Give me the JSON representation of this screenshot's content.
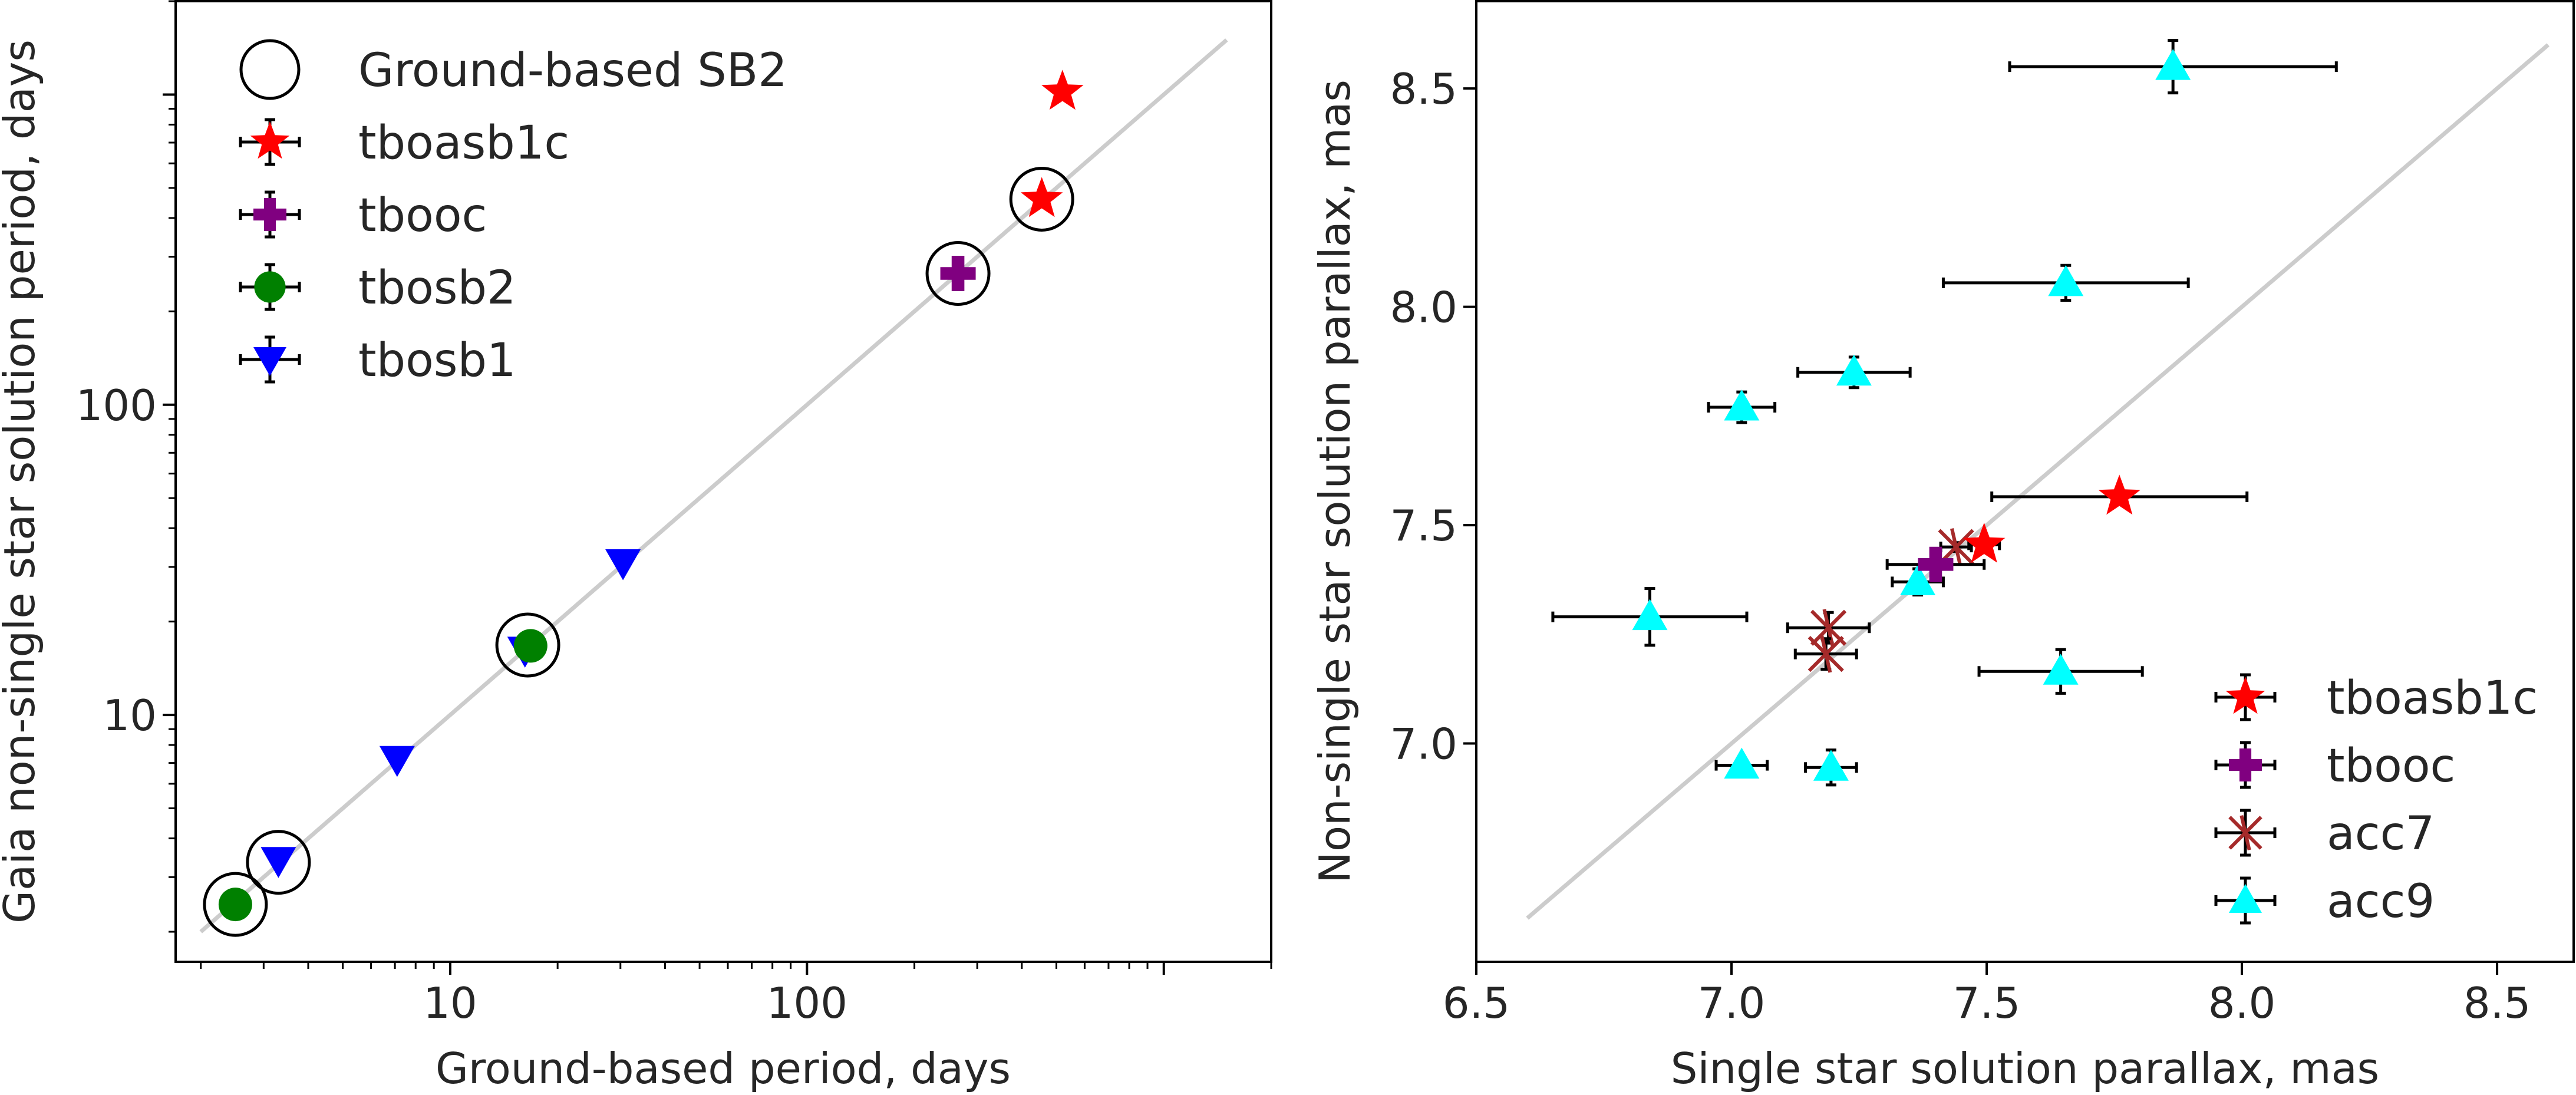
{
  "chart_data": [
    {
      "type": "scatter",
      "xscale": "log",
      "yscale": "log",
      "xlabel": "Ground-based period, days",
      "ylabel": "Gaia non-single star solution period, days",
      "xlim": [
        1.7,
        2000
      ],
      "ylim": [
        1.6,
        2000
      ],
      "xticks": [
        {
          "value": 10,
          "label": "10"
        },
        {
          "value": 100,
          "label": "100"
        }
      ],
      "yticks": [
        {
          "value": 10,
          "label": "10"
        },
        {
          "value": 100,
          "label": "100"
        }
      ],
      "reference_line": {
        "from": [
          2.0,
          2.0
        ],
        "to": [
          1500,
          1500
        ],
        "color": "#cccccc"
      },
      "legend_position": "upper-left",
      "series": [
        {
          "name": "Ground-based SB2",
          "marker": "open-circle",
          "color": "#000000",
          "points": [
            [
              2.5,
              2.45
            ],
            [
              3.3,
              3.35
            ],
            [
              16.5,
              16.8
            ],
            [
              265,
              265
            ],
            [
              455,
              460
            ]
          ]
        },
        {
          "name": "tboasb1c",
          "marker": "star",
          "color": "#ff0000",
          "points": [
            [
              455,
              460
            ],
            [
              520,
              1020
            ]
          ]
        },
        {
          "name": "tbooc",
          "marker": "plus",
          "color": "#800080",
          "points": [
            [
              265,
              265
            ]
          ]
        },
        {
          "name": "tbosb2",
          "marker": "circle",
          "color": "#008000",
          "points": [
            [
              2.5,
              2.45
            ],
            [
              16.8,
              16.7
            ]
          ]
        },
        {
          "name": "tbosb1",
          "marker": "triangle-down",
          "color": "#0000ff",
          "points": [
            [
              3.3,
              3.4
            ],
            [
              7.1,
              7.2
            ],
            [
              16.2,
              16.2
            ],
            [
              30.5,
              31
            ]
          ]
        }
      ]
    },
    {
      "type": "scatter",
      "xlabel": "Single star solution parallax, mas",
      "ylabel": "Non-single star solution parallax, mas",
      "xlim": [
        6.5,
        8.65
      ],
      "ylim": [
        6.5,
        8.7
      ],
      "xticks": [
        {
          "value": 6.5,
          "label": "6.5"
        },
        {
          "value": 7.0,
          "label": "7.0"
        },
        {
          "value": 7.5,
          "label": "7.5"
        },
        {
          "value": 8.0,
          "label": "8.0"
        },
        {
          "value": 8.5,
          "label": "8.5"
        }
      ],
      "yticks": [
        {
          "value": 7.0,
          "label": "7.0"
        },
        {
          "value": 7.5,
          "label": "7.5"
        },
        {
          "value": 8.0,
          "label": "8.0"
        },
        {
          "value": 8.5,
          "label": "8.5"
        }
      ],
      "reference_line": {
        "from": [
          6.6,
          6.6
        ],
        "to": [
          8.6,
          8.6
        ],
        "color": "#cccccc"
      },
      "legend_position": "lower-right",
      "series": [
        {
          "name": "tboasb1c",
          "marker": "star",
          "color": "#ff0000",
          "points": [
            {
              "x": 7.76,
              "y": 7.565,
              "xerr": 0.25,
              "yerr": 0.012
            },
            {
              "x": 7.495,
              "y": 7.455,
              "xerr": 0.03,
              "yerr": 0.01
            }
          ]
        },
        {
          "name": "tbooc",
          "marker": "plus",
          "color": "#800080",
          "points": [
            {
              "x": 7.4,
              "y": 7.41,
              "xerr": 0.095,
              "yerr": 0.01
            }
          ]
        },
        {
          "name": "acc7",
          "marker": "x-star",
          "color": "#a52a2a",
          "points": [
            {
              "x": 7.19,
              "y": 7.265,
              "xerr": 0.08,
              "yerr": 0.035
            },
            {
              "x": 7.185,
              "y": 7.205,
              "xerr": 0.06,
              "yerr": 0.035
            },
            {
              "x": 7.44,
              "y": 7.45,
              "xerr": 0.03,
              "yerr": 0.01
            }
          ]
        },
        {
          "name": "acc9",
          "marker": "triangle-up",
          "color": "#00ffff",
          "points": [
            {
              "x": 7.865,
              "y": 8.55,
              "xerr": 0.32,
              "yerr": 0.06
            },
            {
              "x": 7.655,
              "y": 8.055,
              "xerr": 0.24,
              "yerr": 0.04
            },
            {
              "x": 7.24,
              "y": 7.85,
              "xerr": 0.11,
              "yerr": 0.035
            },
            {
              "x": 7.02,
              "y": 7.77,
              "xerr": 0.065,
              "yerr": 0.035
            },
            {
              "x": 7.365,
              "y": 7.37,
              "xerr": 0.05,
              "yerr": 0.03
            },
            {
              "x": 6.84,
              "y": 7.29,
              "xerr": 0.19,
              "yerr": 0.065
            },
            {
              "x": 7.645,
              "y": 7.165,
              "xerr": 0.16,
              "yerr": 0.05
            },
            {
              "x": 7.02,
              "y": 6.95,
              "xerr": 0.05,
              "yerr": 0.012
            },
            {
              "x": 7.195,
              "y": 6.945,
              "xerr": 0.05,
              "yerr": 0.04
            }
          ]
        }
      ]
    }
  ]
}
